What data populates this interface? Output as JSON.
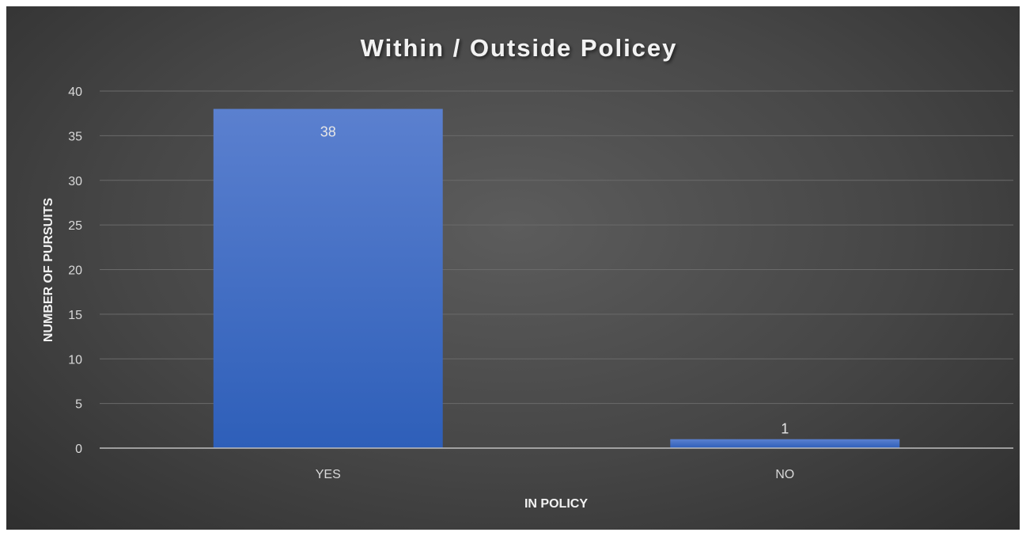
{
  "chart_data": {
    "type": "bar",
    "title": "Within / Outside Policey",
    "xlabel": "IN POLICY",
    "ylabel": "NUMBER OF PURSUITS",
    "categories": [
      "YES",
      "NO"
    ],
    "values": [
      38,
      1
    ],
    "data_labels": [
      "38",
      "1"
    ],
    "ylim": [
      0,
      40
    ],
    "yticks": [
      0,
      5,
      10,
      15,
      20,
      25,
      30,
      35,
      40
    ],
    "grid": true,
    "legend": "none",
    "colors": {
      "bar_top": "#5b80cf",
      "bar_bottom": "#2e5fb9",
      "background": "#474747"
    }
  }
}
